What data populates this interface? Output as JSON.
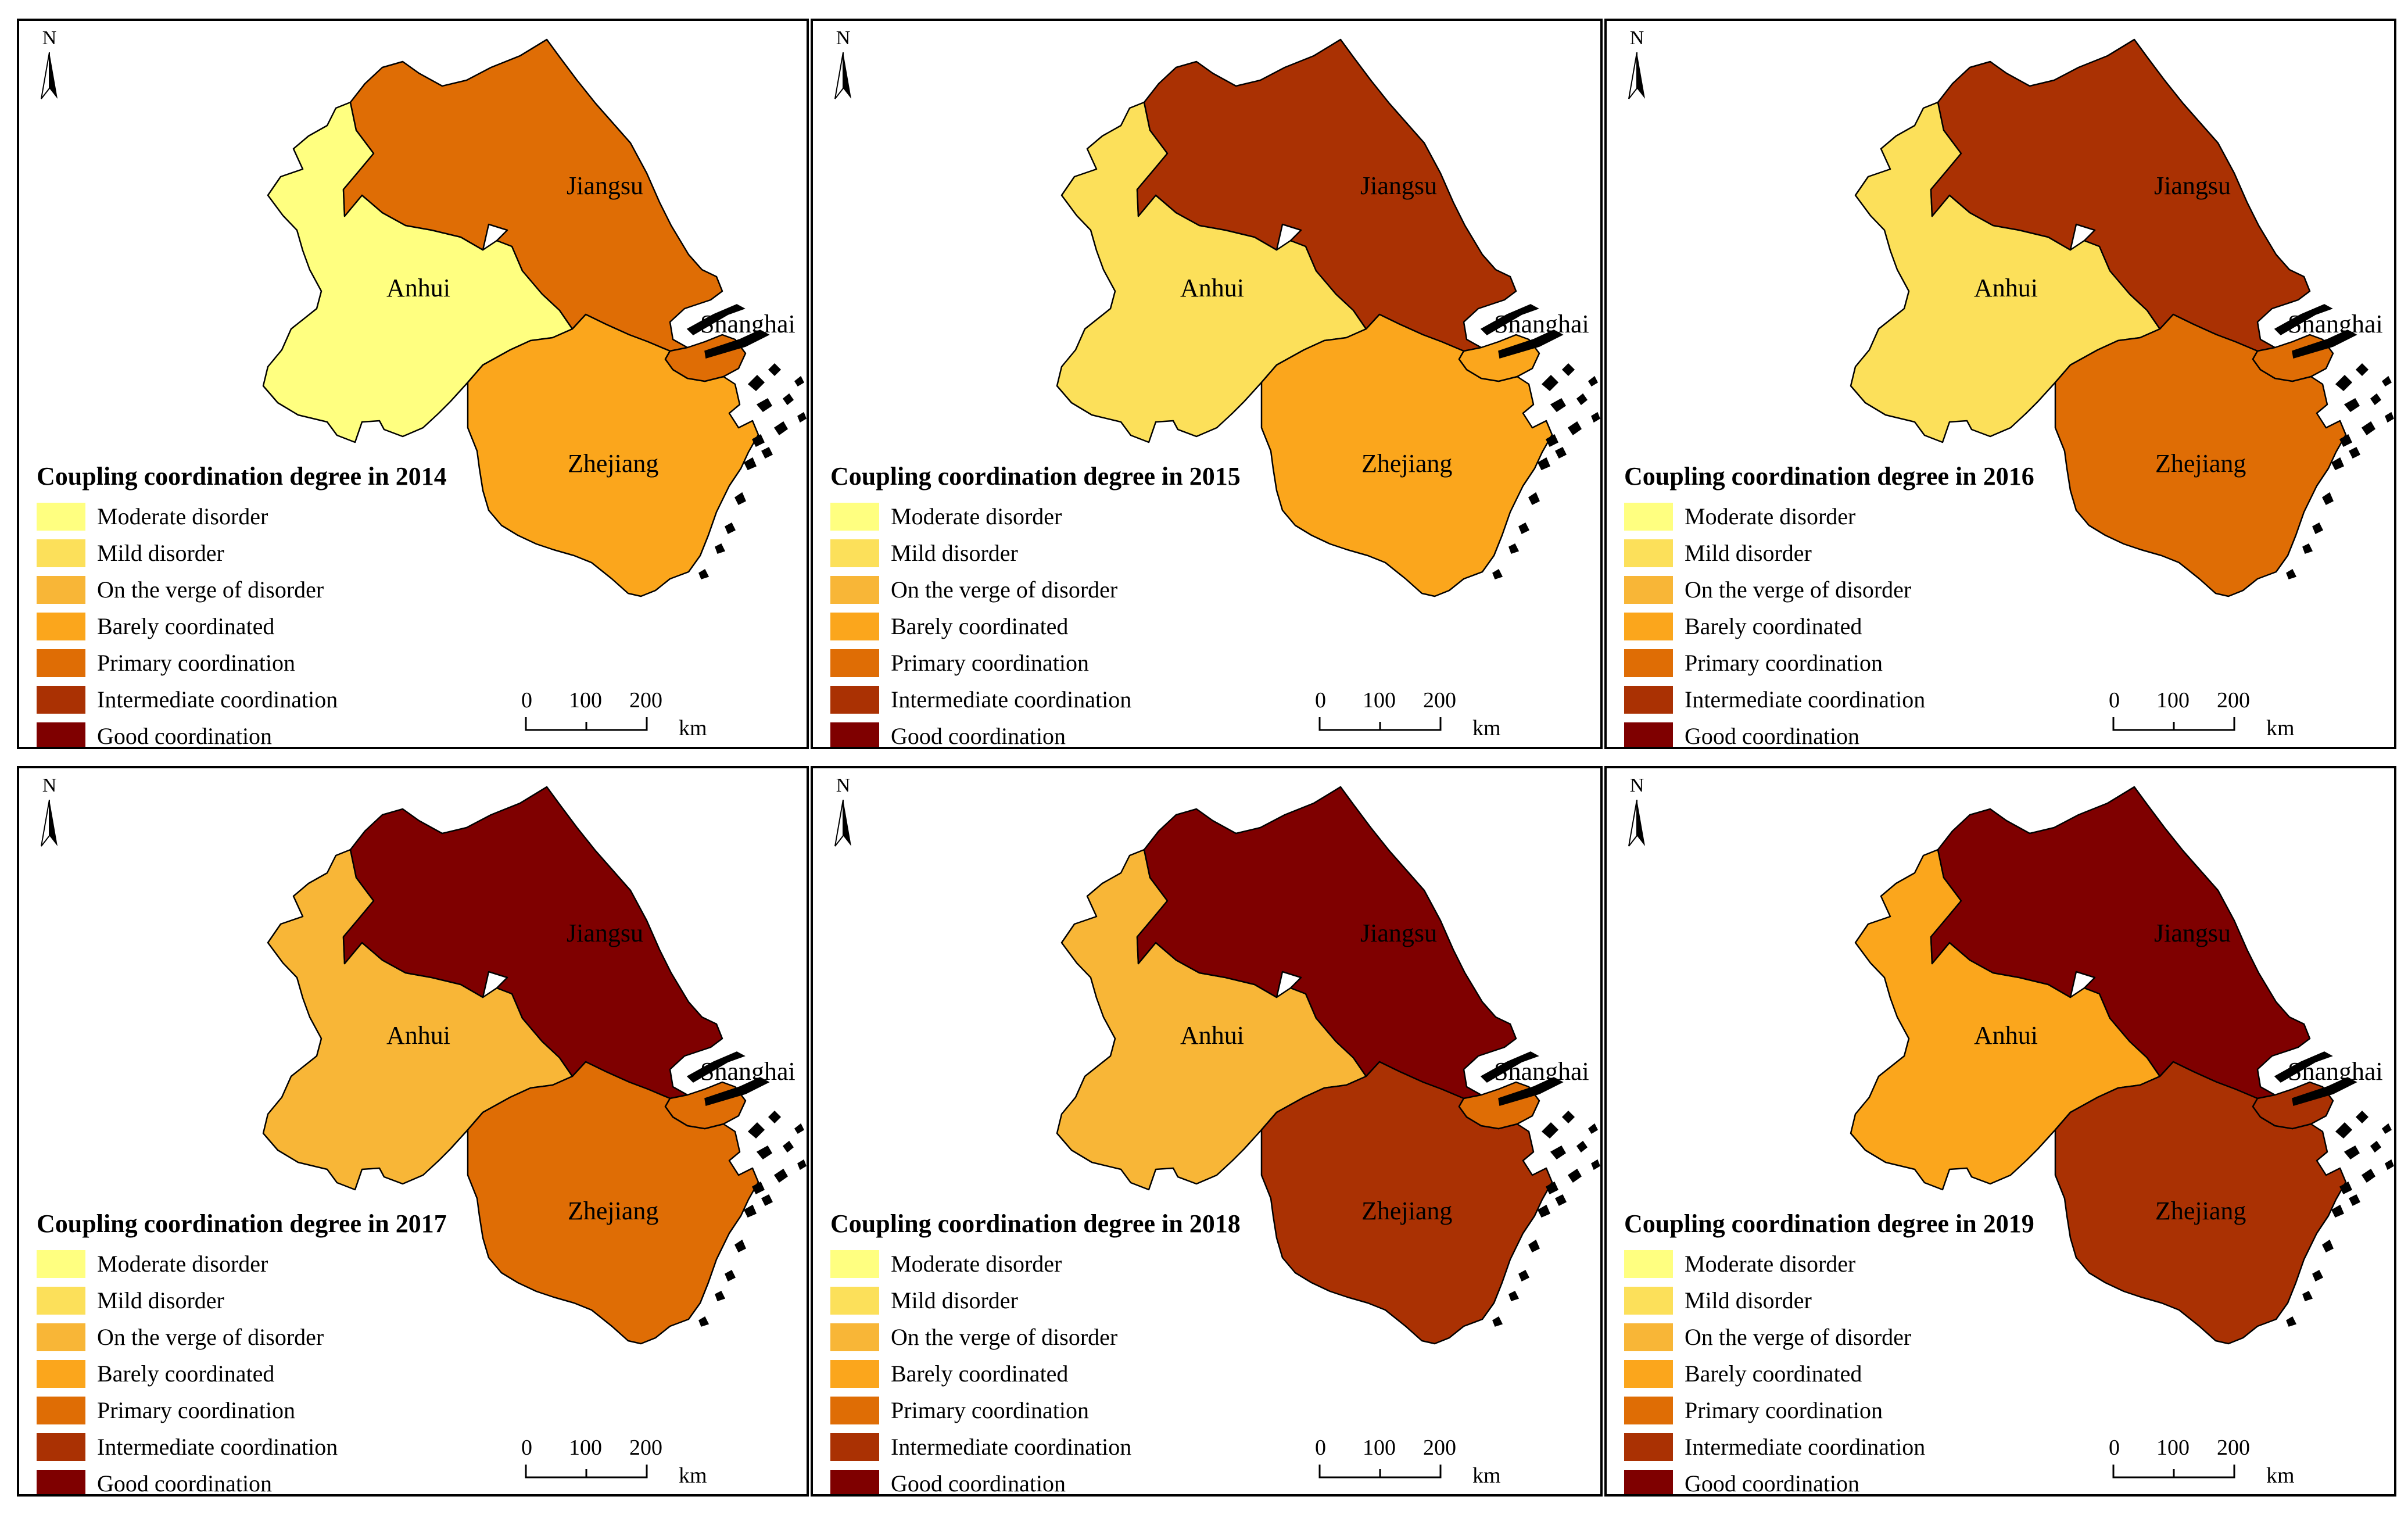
{
  "north_label": "N",
  "provinces": {
    "anhui": "Anhui",
    "jiangsu": "Jiangsu",
    "shanghai": "Shanghai",
    "zhejiang": "Zhejiang"
  },
  "legend": {
    "categories": [
      {
        "label": "Moderate disorder",
        "color": "#FFFF80"
      },
      {
        "label": "Mild disorder",
        "color": "#FCE05A"
      },
      {
        "label": "On the verge of disorder",
        "color": "#F8B637"
      },
      {
        "label": "Barely coordinated",
        "color": "#FBA61C"
      },
      {
        "label": "Primary coordination",
        "color": "#DF6D05"
      },
      {
        "label": "Intermediate coordination",
        "color": "#AA3103"
      },
      {
        "label": "Good coordination",
        "color": "#7F0000"
      }
    ]
  },
  "scale_bar": {
    "ticks": [
      "0",
      "100",
      "200"
    ],
    "unit": "km"
  },
  "panels": [
    {
      "title": "Coupling coordination degree in 2014",
      "levels": {
        "anhui": "Moderate disorder",
        "jiangsu": "Primary coordination",
        "shanghai": "Primary coordination",
        "zhejiang": "Barely coordinated"
      }
    },
    {
      "title": "Coupling coordination degree in 2015",
      "levels": {
        "anhui": "Mild disorder",
        "jiangsu": "Intermediate coordination",
        "shanghai": "Barely coordinated",
        "zhejiang": "Barely coordinated"
      }
    },
    {
      "title": "Coupling coordination degree in 2016",
      "levels": {
        "anhui": "Mild disorder",
        "jiangsu": "Intermediate coordination",
        "shanghai": "Primary coordination",
        "zhejiang": "Primary coordination"
      }
    },
    {
      "title": "Coupling coordination degree in 2017",
      "levels": {
        "anhui": "On the verge of disorder",
        "jiangsu": "Good coordination",
        "shanghai": "Primary coordination",
        "zhejiang": "Primary coordination"
      }
    },
    {
      "title": "Coupling coordination degree in 2018",
      "levels": {
        "anhui": "On the verge of disorder",
        "jiangsu": "Good coordination",
        "shanghai": "Primary coordination",
        "zhejiang": "Intermediate coordination"
      }
    },
    {
      "title": "Coupling coordination degree in 2019",
      "levels": {
        "anhui": "Barely coordinated",
        "jiangsu": "Good coordination",
        "shanghai": "Intermediate coordination",
        "zhejiang": "Intermediate coordination"
      }
    }
  ]
}
